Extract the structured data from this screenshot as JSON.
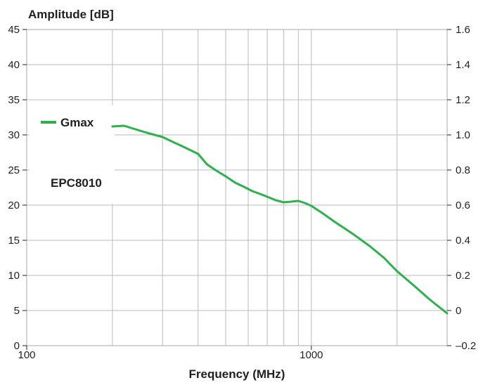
{
  "chart_data": {
    "type": "line",
    "ylabel": "Amplitude [dB]",
    "xlabel": "Frequency (MHz)",
    "xscale": "log",
    "xlim": [
      100,
      3000
    ],
    "ylim": [
      0,
      45
    ],
    "y2lim": [
      -0.2,
      1.6
    ],
    "grid": true,
    "x_ticks": [
      {
        "value": 100,
        "label": "100"
      },
      {
        "value": 1000,
        "label": "1000"
      }
    ],
    "x_minor_gridlines": [
      200,
      300,
      400,
      500,
      600,
      700,
      800,
      900,
      2000
    ],
    "y_ticks": [
      0,
      5,
      10,
      15,
      20,
      25,
      30,
      35,
      40,
      45
    ],
    "y_tick_labels": [
      "0",
      "5",
      "10",
      "15",
      "20",
      "25",
      "30",
      "35",
      "40",
      "45"
    ],
    "y2_ticks": [
      -0.2,
      0,
      0.2,
      0.4,
      0.6,
      0.8,
      1.0,
      1.2,
      1.4,
      1.6
    ],
    "y2_tick_labels": [
      "–0.2",
      "0",
      "0.2",
      "0.4",
      "0.6",
      "0.8",
      "1.0",
      "1.2",
      "1.4",
      "1.6"
    ],
    "legend_placement": "left",
    "annotation": "EPC8010",
    "series": [
      {
        "name": "Gmax",
        "color": "#2db14d",
        "x": [
          200,
          220,
          250,
          270,
          300,
          330,
          360,
          400,
          430,
          460,
          500,
          540,
          580,
          620,
          660,
          700,
          750,
          800,
          850,
          900,
          950,
          1000,
          1100,
          1200,
          1400,
          1600,
          1800,
          2000,
          2300,
          2600,
          3000
        ],
        "y": [
          31.2,
          31.3,
          30.6,
          30.2,
          29.7,
          28.9,
          28.2,
          27.3,
          25.8,
          25.0,
          24.1,
          23.2,
          22.6,
          22.0,
          21.6,
          21.2,
          20.7,
          20.4,
          20.5,
          20.6,
          20.3,
          19.9,
          18.8,
          17.7,
          15.9,
          14.2,
          12.5,
          10.6,
          8.5,
          6.6,
          4.6
        ]
      }
    ]
  }
}
